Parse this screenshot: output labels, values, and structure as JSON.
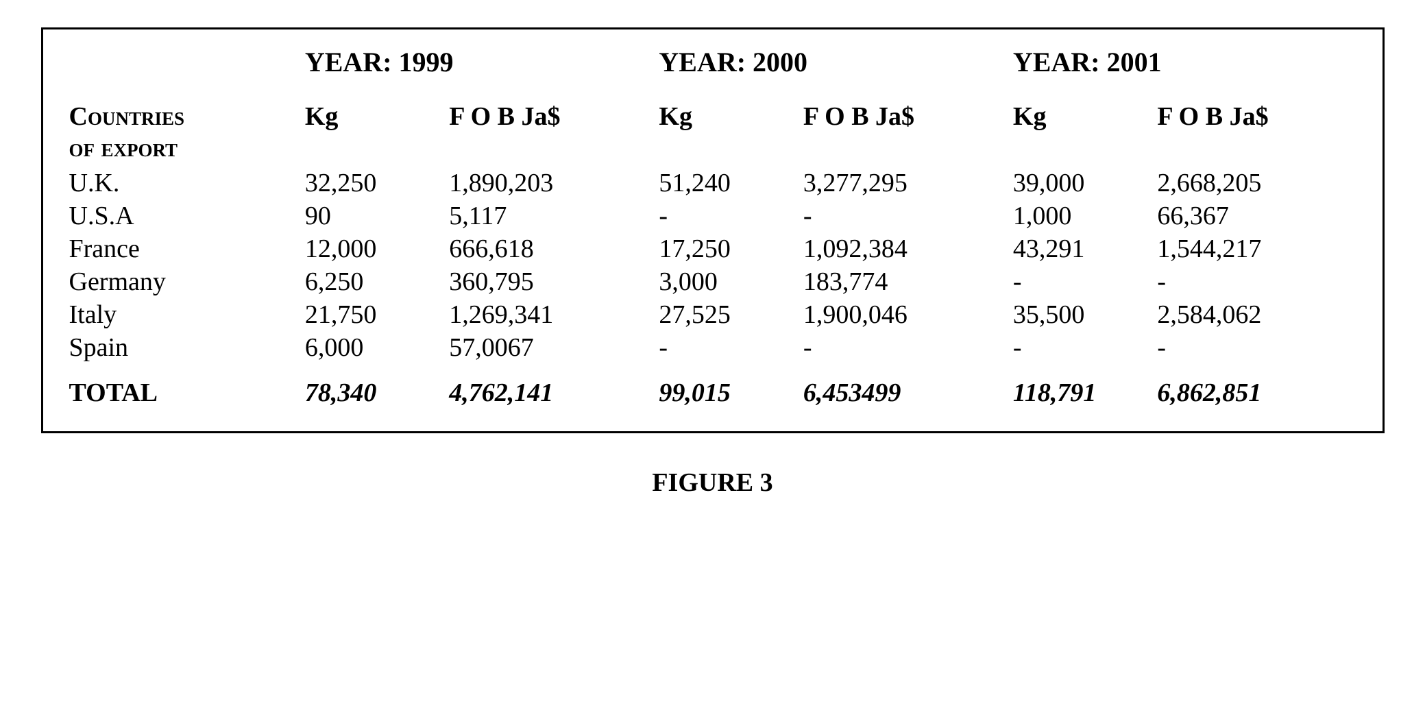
{
  "table": {
    "type": "table",
    "border_color": "#000000",
    "background_color": "#ffffff",
    "text_color": "#000000",
    "font_family": "Times New Roman",
    "year_headers": [
      "YEAR: 1999",
      "YEAR: 2000",
      "YEAR: 2001"
    ],
    "countries_label_line1": "Countries",
    "countries_label_line2": "of export",
    "sub_headers": {
      "kg": "Kg",
      "fob": "F O B Ja$"
    },
    "rows": [
      {
        "country": "U.K.",
        "y1999_kg": "32,250",
        "y1999_fob": "1,890,203",
        "y2000_kg": "51,240",
        "y2000_fob": "3,277,295",
        "y2001_kg": "39,000",
        "y2001_fob": "2,668,205"
      },
      {
        "country": "U.S.A",
        "y1999_kg": "90",
        "y1999_fob": "5,117",
        "y2000_kg": "-",
        "y2000_fob": "-",
        "y2001_kg": "1,000",
        "y2001_fob": "66,367"
      },
      {
        "country": "France",
        "y1999_kg": "12,000",
        "y1999_fob": "666,618",
        "y2000_kg": "17,250",
        "y2000_fob": "1,092,384",
        "y2001_kg": "43,291",
        "y2001_fob": "1,544,217"
      },
      {
        "country": "Germany",
        "y1999_kg": "6,250",
        "y1999_fob": "360,795",
        "y2000_kg": "3,000",
        "y2000_fob": "183,774",
        "y2001_kg": "-",
        "y2001_fob": "-"
      },
      {
        "country": "Italy",
        "y1999_kg": "21,750",
        "y1999_fob": "1,269,341",
        "y2000_kg": "27,525",
        "y2000_fob": "1,900,046",
        "y2001_kg": "35,500",
        "y2001_fob": "2,584,062"
      },
      {
        "country": "Spain",
        "y1999_kg": "6,000",
        "y1999_fob": "57,0067",
        "y2000_kg": "-",
        "y2000_fob": "-",
        "y2001_kg": "-",
        "y2001_fob": "-"
      }
    ],
    "total": {
      "label": "TOTAL",
      "y1999_kg": "78,340",
      "y1999_fob": "4,762,141",
      "y2000_kg": "99,015",
      "y2000_fob": "6,453499",
      "y2001_kg": "118,791",
      "y2001_fob": "6,862,851"
    }
  },
  "caption": "FIGURE 3"
}
